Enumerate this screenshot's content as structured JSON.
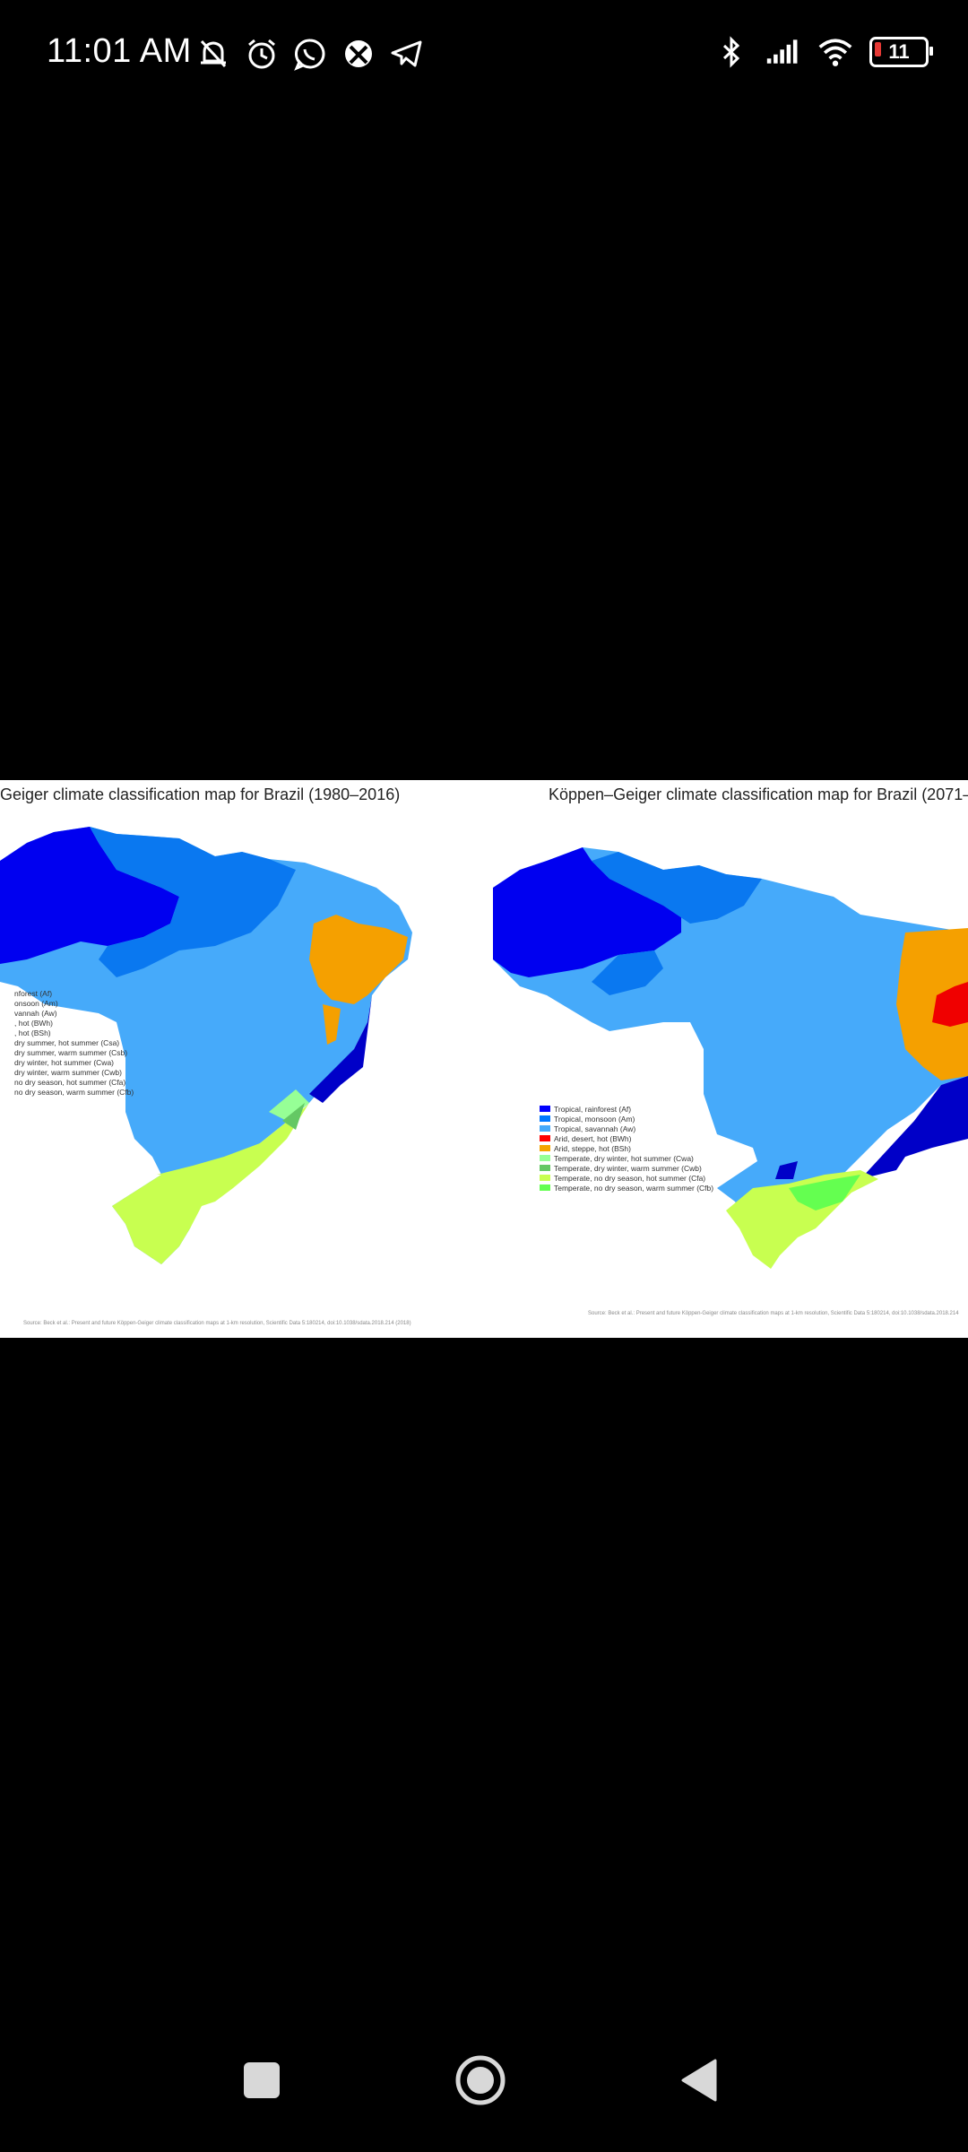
{
  "status_bar": {
    "time": "11:01 AM",
    "left_icons": [
      "mute-bell-icon",
      "alarm-icon",
      "whatsapp-icon",
      "xbox-icon",
      "telegram-icon"
    ],
    "right_icons": [
      "bluetooth-icon",
      "signal-icon",
      "wifi-icon"
    ],
    "battery_level": "11"
  },
  "viewer": {
    "left_map": {
      "title": "Geiger climate classification map for Brazil (1980–2016)",
      "legend": [
        {
          "label": "nforest (Af)",
          "color": "#0000ff"
        },
        {
          "label": "onsoon (Am)",
          "color": "#0078ff"
        },
        {
          "label": "vannah (Aw)",
          "color": "#46aafa"
        },
        {
          "label": ", hot (BWh)",
          "color": "#ff0000"
        },
        {
          "label": ", hot (BSh)",
          "color": "#f5a500"
        },
        {
          "label": "dry summer, hot summer (Csa)",
          "color": "#ffff00"
        },
        {
          "label": "dry summer, warm summer (Csb)",
          "color": "#c8c800"
        },
        {
          "label": "dry winter, hot summer (Cwa)",
          "color": "#96ff96"
        },
        {
          "label": "dry winter, warm summer (Cwb)",
          "color": "#64c864"
        },
        {
          "label": "no dry season, hot summer (Cfa)",
          "color": "#c8ff50"
        },
        {
          "label": "no dry season, warm summer (Cfb)",
          "color": "#64ff50"
        }
      ],
      "source": "Source: Beck et al.: Present and future Köppen-Geiger climate classification maps at 1-km resolution, Scientific Data 5:180214, doi:10.1038/sdata.2018.214 (2018)"
    },
    "right_map": {
      "title": "Köppen–Geiger climate classification map for Brazil (2071–",
      "legend": [
        {
          "label": "Tropical, rainforest (Af)",
          "color": "#0000ff"
        },
        {
          "label": "Tropical, monsoon (Am)",
          "color": "#0078ff"
        },
        {
          "label": "Tropical, savannah (Aw)",
          "color": "#46aafa"
        },
        {
          "label": "Arid, desert, hot (BWh)",
          "color": "#ff0000"
        },
        {
          "label": "Arid, steppe, hot (BSh)",
          "color": "#f5a500"
        },
        {
          "label": "Temperate, dry winter, hot summer (Cwa)",
          "color": "#96ff96"
        },
        {
          "label": "Temperate, dry winter, warm summer (Cwb)",
          "color": "#64c864"
        },
        {
          "label": "Temperate, no dry season, hot summer (Cfa)",
          "color": "#c8ff50"
        },
        {
          "label": "Temperate, no dry season, warm summer (Cfb)",
          "color": "#64ff50"
        }
      ],
      "source": "Source: Beck et al.: Present and future Köppen-Geiger climate classification maps at 1-km resolution, Scientific Data 5:180214, doi:10.1038/sdata.2018.214"
    }
  },
  "nav_bar": {
    "buttons": [
      "recents-square-icon",
      "home-circle-icon",
      "back-triangle-icon"
    ]
  }
}
